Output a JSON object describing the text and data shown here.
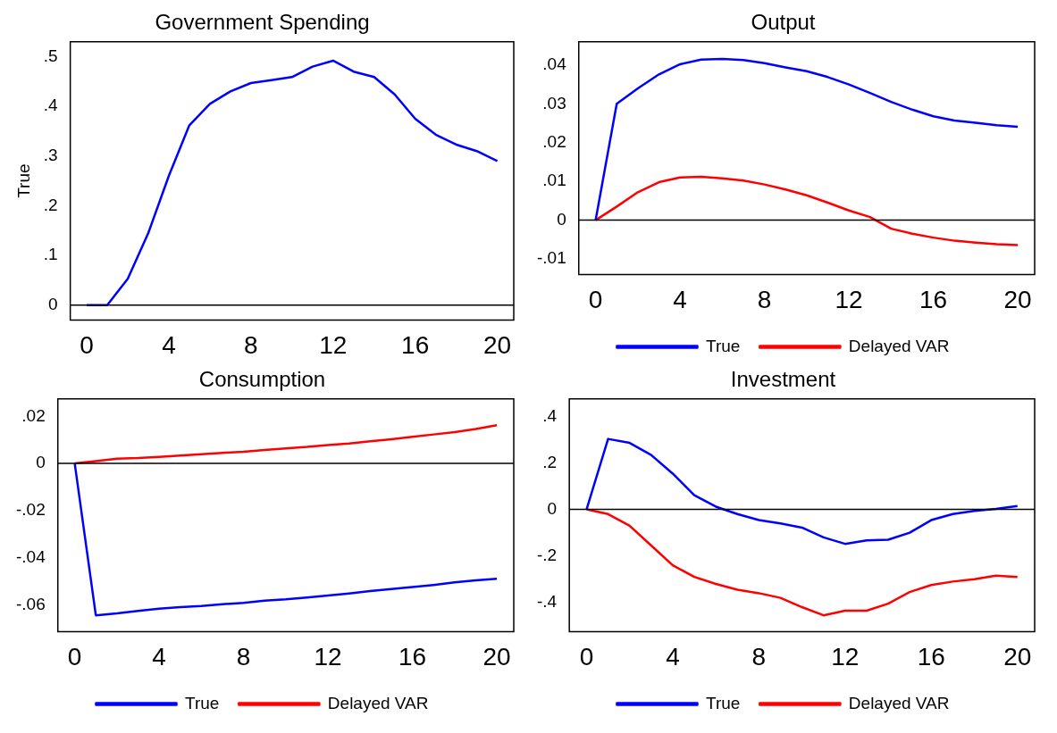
{
  "chart_data": [
    {
      "type": "line",
      "title": "Government Spending",
      "ylabel": "True",
      "x": [
        0,
        1,
        2,
        3,
        4,
        5,
        6,
        7,
        8,
        9,
        10,
        11,
        12,
        13,
        14,
        15,
        16,
        17,
        18,
        19,
        20
      ],
      "series": [
        {
          "color": "#0000ff",
          "values": [
            0,
            0,
            0.053,
            0.145,
            0.26,
            0.362,
            0.405,
            0.43,
            0.447,
            0.453,
            0.459,
            0.48,
            0.492,
            0.47,
            0.459,
            0.424,
            0.375,
            0.343,
            0.323,
            0.31,
            0.29
          ]
        }
      ],
      "xlim": [
        -0.8,
        20.8
      ],
      "xticks": [
        0,
        4,
        8,
        12,
        16,
        20
      ],
      "ylim": [
        -0.03,
        0.53
      ],
      "yticks": [
        {
          "value": 0,
          "label": "0"
        },
        {
          "value": 0.1,
          "label": ".1"
        },
        {
          "value": 0.2,
          "label": ".2"
        },
        {
          "value": 0.3,
          "label": ".3"
        },
        {
          "value": 0.4,
          "label": ".4"
        },
        {
          "value": 0.5,
          "label": ".5"
        }
      ],
      "ref_lines": [
        {
          "axis": "y",
          "value": 0,
          "color": "#000000"
        }
      ],
      "grid": false,
      "legend": false,
      "marker": "none",
      "line_style": "solid"
    },
    {
      "type": "line",
      "title": "Output",
      "x": [
        0,
        1,
        2,
        3,
        4,
        5,
        6,
        7,
        8,
        9,
        10,
        11,
        12,
        13,
        14,
        15,
        16,
        17,
        18,
        19,
        20
      ],
      "series": [
        {
          "name": "True",
          "color": "#0000ff",
          "values": [
            0,
            0.03,
            0.034,
            0.0376,
            0.0402,
            0.0414,
            0.0416,
            0.0413,
            0.0405,
            0.0394,
            0.0384,
            0.0369,
            0.035,
            0.0328,
            0.0305,
            0.0285,
            0.0268,
            0.0257,
            0.0251,
            0.0245,
            0.0241
          ]
        },
        {
          "name": "Delayed VAR",
          "color": "#ff0000",
          "values": [
            0,
            0.0035,
            0.0072,
            0.0098,
            0.011,
            0.0112,
            0.0108,
            0.0102,
            0.0092,
            0.0079,
            0.0064,
            0.0045,
            0.0025,
            0.0008,
            -0.0022,
            -0.0035,
            -0.0045,
            -0.0053,
            -0.0058,
            -0.0062,
            -0.0064
          ]
        }
      ],
      "xlim": [
        -0.8,
        20.8
      ],
      "xticks": [
        0,
        4,
        8,
        12,
        16,
        20
      ],
      "ylim": [
        -0.014,
        0.046
      ],
      "yticks": [
        {
          "value": -0.01,
          "label": "-.01"
        },
        {
          "value": 0,
          "label": "0"
        },
        {
          "value": 0.01,
          "label": ".01"
        },
        {
          "value": 0.02,
          "label": ".02"
        },
        {
          "value": 0.03,
          "label": ".03"
        },
        {
          "value": 0.04,
          "label": ".04"
        }
      ],
      "ref_lines": [
        {
          "axis": "y",
          "value": 0,
          "color": "#000000"
        }
      ],
      "grid": false,
      "legend": "bottom",
      "marker": "none",
      "line_style": "solid"
    },
    {
      "type": "line",
      "title": "Consumption",
      "x": [
        0,
        1,
        2,
        3,
        4,
        5,
        6,
        7,
        8,
        9,
        10,
        11,
        12,
        13,
        14,
        15,
        16,
        17,
        18,
        19,
        20
      ],
      "series": [
        {
          "name": "True",
          "color": "#0000ff",
          "values": [
            0,
            -0.0645,
            -0.0637,
            -0.0626,
            -0.0617,
            -0.061,
            -0.0605,
            -0.0598,
            -0.0592,
            -0.0583,
            -0.0577,
            -0.0569,
            -0.0561,
            -0.0552,
            -0.0542,
            -0.0533,
            -0.0525,
            -0.0516,
            -0.0505,
            -0.0496,
            -0.049
          ]
        },
        {
          "name": "Delayed VAR",
          "color": "#ff0000",
          "values": [
            0,
            0.001,
            0.002,
            0.0023,
            0.0028,
            0.0033,
            0.0039,
            0.0045,
            0.005,
            0.0057,
            0.0064,
            0.007,
            0.0078,
            0.0085,
            0.0094,
            0.0103,
            0.0113,
            0.0123,
            0.0133,
            0.0146,
            0.0162
          ]
        }
      ],
      "xlim": [
        -0.8,
        20.8
      ],
      "xticks": [
        0,
        4,
        8,
        12,
        16,
        20
      ],
      "ylim": [
        -0.0714,
        0.0274
      ],
      "yticks": [
        {
          "value": -0.06,
          "label": "-.06"
        },
        {
          "value": -0.04,
          "label": "-.04"
        },
        {
          "value": -0.02,
          "label": "-.02"
        },
        {
          "value": 0,
          "label": "0"
        },
        {
          "value": 0.02,
          "label": ".02"
        }
      ],
      "ref_lines": [
        {
          "axis": "y",
          "value": 0,
          "color": "#000000"
        }
      ],
      "grid": false,
      "legend": "bottom",
      "marker": "none",
      "line_style": "solid"
    },
    {
      "type": "line",
      "title": "Investment",
      "x": [
        0,
        1,
        2,
        3,
        4,
        5,
        6,
        7,
        8,
        9,
        10,
        11,
        12,
        13,
        14,
        15,
        16,
        17,
        18,
        19,
        20
      ],
      "series": [
        {
          "name": "True",
          "color": "#0000ff",
          "values": [
            0,
            0.303,
            0.286,
            0.234,
            0.154,
            0.061,
            0.012,
            -0.02,
            -0.046,
            -0.06,
            -0.078,
            -0.12,
            -0.148,
            -0.133,
            -0.13,
            -0.1,
            -0.046,
            -0.02,
            -0.006,
            0.002,
            0.015
          ]
        },
        {
          "name": "Delayed VAR",
          "color": "#ff0000",
          "values": [
            0,
            -0.02,
            -0.07,
            -0.155,
            -0.24,
            -0.29,
            -0.32,
            -0.345,
            -0.36,
            -0.38,
            -0.42,
            -0.455,
            -0.435,
            -0.435,
            -0.405,
            -0.355,
            -0.325,
            -0.31,
            -0.3,
            -0.285,
            -0.29
          ]
        }
      ],
      "xlim": [
        -0.8,
        20.8
      ],
      "xticks": [
        0,
        4,
        8,
        12,
        16,
        20
      ],
      "ylim": [
        -0.525,
        0.475
      ],
      "yticks": [
        {
          "value": -0.4,
          "label": "-.4"
        },
        {
          "value": -0.2,
          "label": "-.2"
        },
        {
          "value": 0,
          "label": "0"
        },
        {
          "value": 0.2,
          "label": ".2"
        },
        {
          "value": 0.4,
          "label": ".4"
        }
      ],
      "ref_lines": [
        {
          "axis": "y",
          "value": 0,
          "color": "#000000"
        }
      ],
      "grid": false,
      "legend": "bottom",
      "marker": "none",
      "line_style": "solid"
    }
  ]
}
